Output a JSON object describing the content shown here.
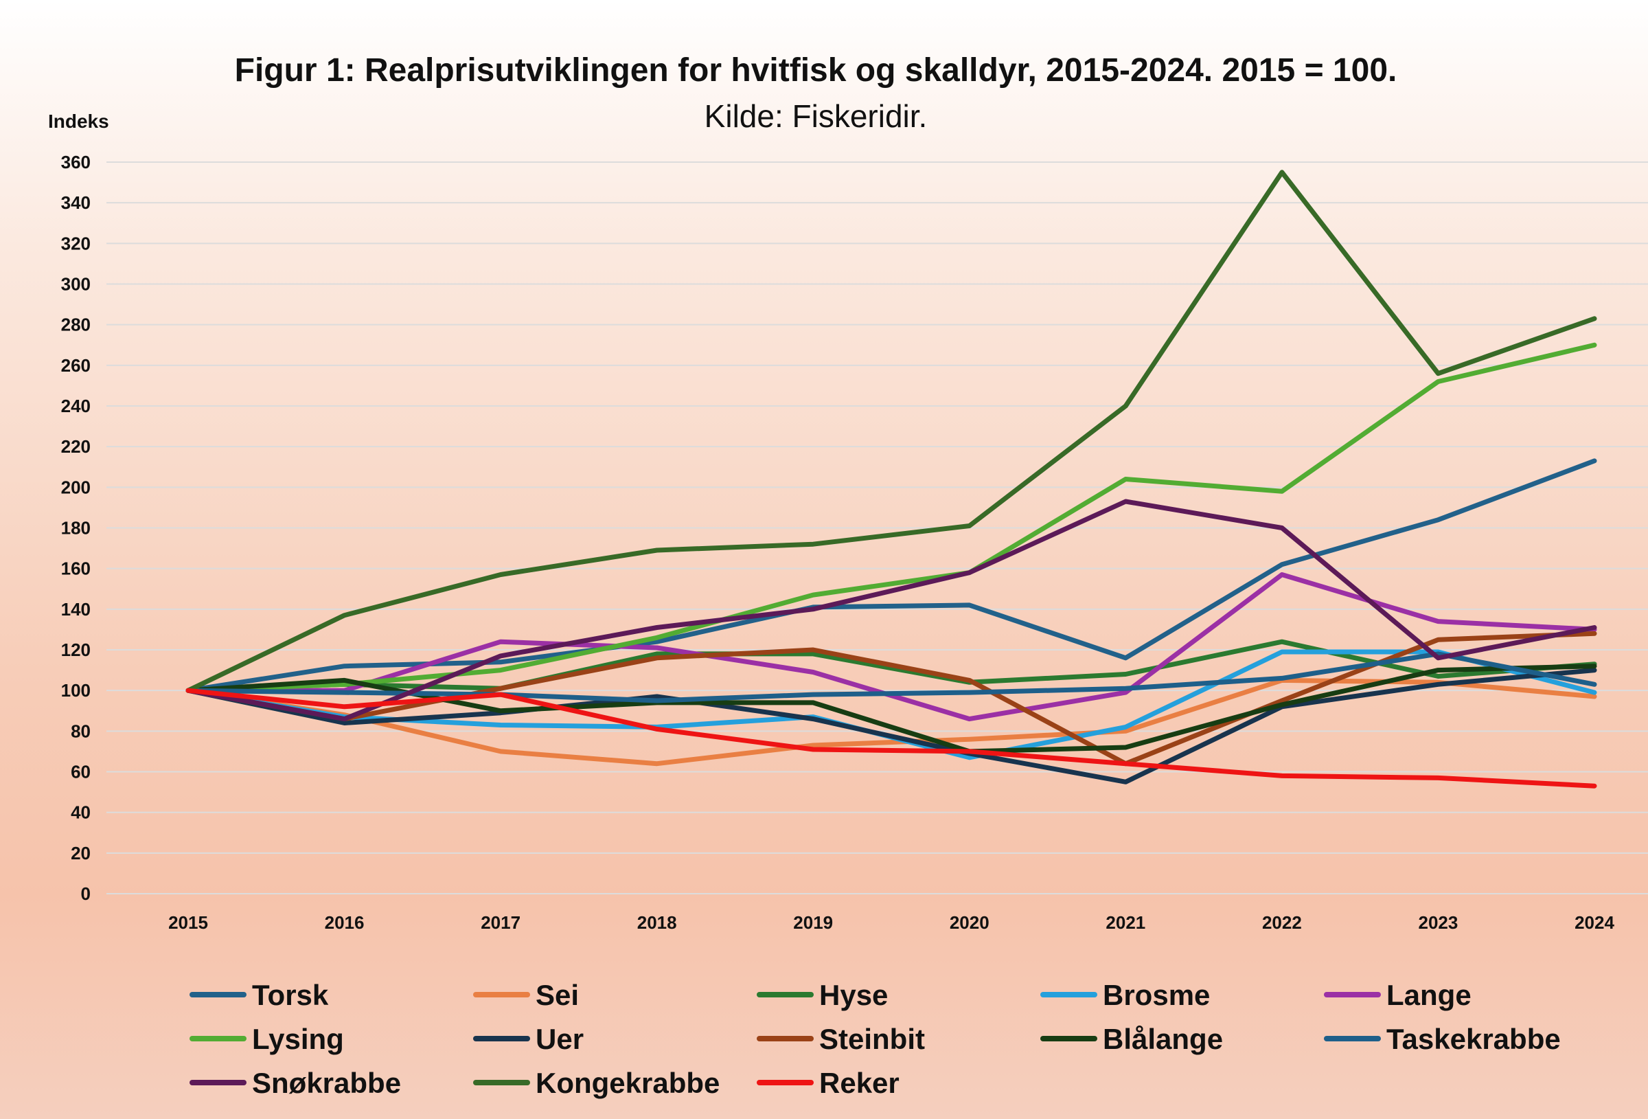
{
  "chart_data": {
    "type": "line",
    "title": "Figur 1: Realprisutviklingen for hvitfisk og skalldyr, 2015-2024. 2015 = 100.",
    "subtitle": "Kilde: Fiskeridir.",
    "ylabel": "Indeks",
    "xlabel": "",
    "ylim": [
      0,
      360
    ],
    "yticks": [
      0,
      20,
      40,
      60,
      80,
      100,
      120,
      140,
      160,
      180,
      200,
      220,
      240,
      260,
      280,
      300,
      320,
      340,
      360
    ],
    "categories": [
      "2015",
      "2016",
      "2017",
      "2018",
      "2019",
      "2020",
      "2021",
      "2022",
      "2023",
      "2024"
    ],
    "grid": true,
    "legend_position": "bottom",
    "series": [
      {
        "name": "Torsk",
        "color": "#22618a",
        "values": [
          100,
          112,
          114,
          124,
          141,
          142,
          116,
          162,
          184,
          213
        ]
      },
      {
        "name": "Sei",
        "color": "#e97f43",
        "values": [
          100,
          88,
          70,
          64,
          73,
          76,
          80,
          105,
          104,
          97
        ]
      },
      {
        "name": "Hyse",
        "color": "#2b7a30",
        "values": [
          100,
          103,
          101,
          118,
          118,
          104,
          108,
          124,
          107,
          113
        ]
      },
      {
        "name": "Brosme",
        "color": "#25a0dc",
        "values": [
          100,
          87,
          83,
          82,
          87,
          67,
          82,
          119,
          119,
          99
        ]
      },
      {
        "name": "Lange",
        "color": "#9b30a5",
        "values": [
          100,
          100,
          124,
          121,
          109,
          86,
          99,
          157,
          134,
          130
        ]
      },
      {
        "name": "Lysing",
        "color": "#52ac33",
        "values": [
          100,
          103,
          110,
          126,
          147,
          158,
          204,
          198,
          252,
          270
        ]
      },
      {
        "name": "Uer",
        "color": "#18344e",
        "values": [
          100,
          84,
          89,
          97,
          86,
          69,
          55,
          92,
          103,
          110
        ]
      },
      {
        "name": "Steinbit",
        "color": "#9a4217",
        "values": [
          100,
          86,
          101,
          116,
          120,
          105,
          64,
          95,
          125,
          128
        ]
      },
      {
        "name": "Blålange",
        "color": "#173d13",
        "values": [
          100,
          105,
          90,
          94,
          94,
          70,
          72,
          93,
          110,
          112
        ]
      },
      {
        "name": "Taskekrabbe",
        "color": "#1e5f8a",
        "values": [
          100,
          99,
          98,
          95,
          98,
          99,
          101,
          106,
          118,
          103
        ]
      },
      {
        "name": "Snøkrabbe",
        "color": "#5c1a58",
        "values": [
          100,
          86,
          117,
          131,
          140,
          158,
          193,
          180,
          116,
          131
        ]
      },
      {
        "name": "Kongekrabbe",
        "color": "#386a27",
        "values": [
          100,
          137,
          157,
          169,
          172,
          181,
          240,
          355,
          256,
          283
        ]
      },
      {
        "name": "Reker",
        "color": "#ee1414",
        "values": [
          100,
          92,
          98,
          81,
          71,
          70,
          64,
          58,
          57,
          53
        ]
      }
    ]
  }
}
